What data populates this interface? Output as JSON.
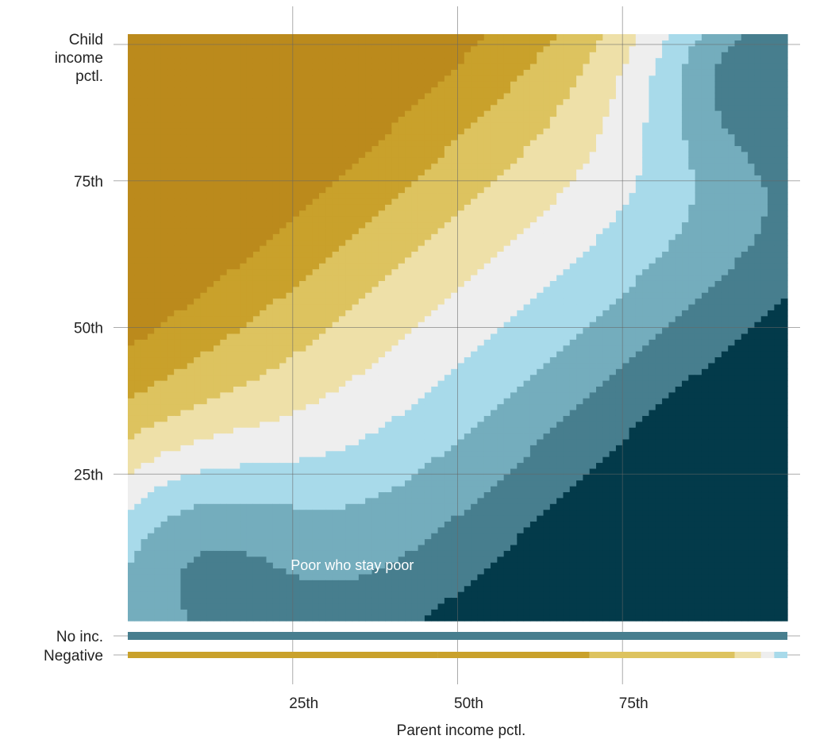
{
  "chart_data": {
    "type": "heatmap",
    "xlabel": "Parent income pctl.",
    "ylabel": "Child income pctl.",
    "x_range": [
      0,
      100
    ],
    "y_range": [
      0,
      100
    ],
    "x_ticks": [
      {
        "value": 25,
        "label": "25th"
      },
      {
        "value": 50,
        "label": "50th"
      },
      {
        "value": 75,
        "label": "75th"
      }
    ],
    "y_ticks": [
      {
        "value": 25,
        "label": "25th"
      },
      {
        "value": 50,
        "label": "50th"
      },
      {
        "value": 75,
        "label": "75th"
      }
    ],
    "ylabel_lines": [
      "Child",
      "income",
      "pctl."
    ],
    "extra_rows": [
      {
        "label": "No inc.",
        "level": -3
      },
      {
        "label": "Negative",
        "levels_by_parent_pctl": [
          {
            "from": 0,
            "to": 47,
            "level": 3
          },
          {
            "from": 47,
            "to": 70,
            "level": 3
          },
          {
            "from": 70,
            "to": 92,
            "level": 2
          },
          {
            "from": 92,
            "to": 96,
            "level": 1
          },
          {
            "from": 96,
            "to": 98,
            "level": 0
          },
          {
            "from": 98,
            "to": 100,
            "level": -1
          }
        ]
      }
    ],
    "color_levels": [
      {
        "level": 4,
        "color": "#BB8A1C"
      },
      {
        "level": 3,
        "color": "#C9A12B"
      },
      {
        "level": 2,
        "color": "#DDC35F"
      },
      {
        "level": 1,
        "color": "#EEE0A8"
      },
      {
        "level": 0,
        "color": "#EEEEEE"
      },
      {
        "level": -1,
        "color": "#A8DAEA"
      },
      {
        "level": -2,
        "color": "#74ADBD"
      },
      {
        "level": -3,
        "color": "#477E8E"
      },
      {
        "level": -4,
        "color": "#033A4A"
      }
    ],
    "grid": true,
    "annotations": [
      {
        "text": "Poor who stay poor",
        "x": 22,
        "y": 8
      }
    ]
  }
}
